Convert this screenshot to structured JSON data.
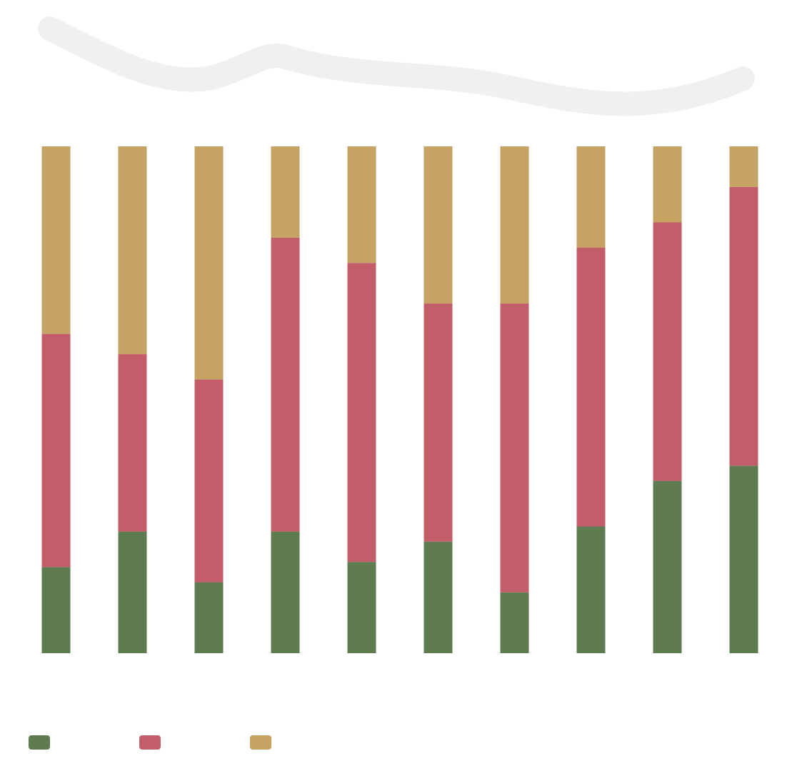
{
  "chart_data": {
    "type": "stacked_bar",
    "categories": [
      null,
      null,
      null,
      null,
      null,
      null,
      null,
      null,
      null,
      null
    ],
    "ylim": [
      0,
      100
    ],
    "series": [
      {
        "color": "#5f7b50",
        "values": [
          17,
          24,
          14,
          24,
          18,
          22,
          12,
          25,
          34,
          37
        ]
      },
      {
        "color": "#c35d69",
        "values": [
          46,
          35,
          40,
          58,
          59,
          47,
          57,
          55,
          51,
          55
        ]
      },
      {
        "color": "#c6a263",
        "values": [
          37,
          41,
          46,
          18,
          23,
          31,
          31,
          20,
          15,
          8
        ]
      }
    ]
  }
}
